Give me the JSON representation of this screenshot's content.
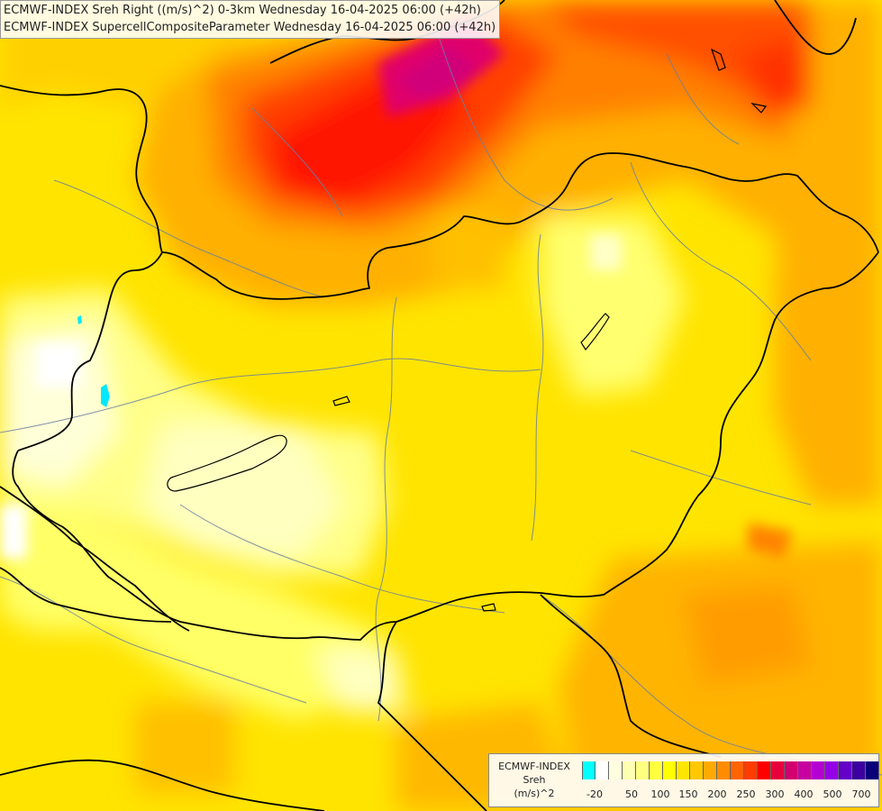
{
  "title": {
    "line1": "ECMWF-INDEX Sreh Right ((m/s)^2) 0-3km Wednesday 16-04-2025 06:00 (+42h)",
    "line2": "ECMWF-INDEX SupercellCompositeParameter Wednesday 16-04-2025 06:00 (+42h)"
  },
  "legend": {
    "model": "ECMWF-INDEX",
    "variable": "Sreh",
    "unit": "(m/s)^2",
    "colors": [
      "#00ffff",
      "#ffffff",
      "#ffffe0",
      "#ffffb4",
      "#ffff80",
      "#ffff40",
      "#ffff00",
      "#ffe600",
      "#ffc800",
      "#ffaa00",
      "#ff8c00",
      "#ff6400",
      "#ff3c00",
      "#ff0000",
      "#e6003c",
      "#d2006e",
      "#c800a0",
      "#b400d2",
      "#9600e6",
      "#6400c8",
      "#3c00a0",
      "#0a0078"
    ],
    "ticks": [
      "-20",
      "50",
      "100",
      "150",
      "200",
      "250",
      "300",
      "400",
      "500",
      "700"
    ]
  }
}
